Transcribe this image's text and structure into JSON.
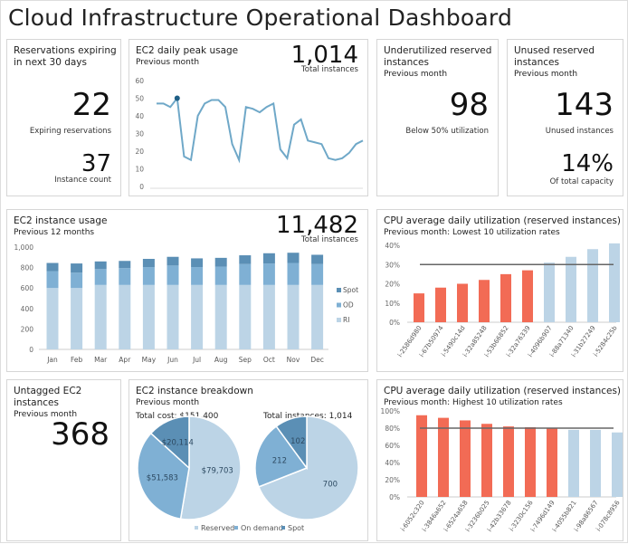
{
  "title": "Cloud Infrastructure Operational Dashboard",
  "expiring": {
    "title": "Reservations expiring in next 30 days",
    "value": "22",
    "value_label": "Expiring reservations",
    "count": "37",
    "count_label": "Instance count"
  },
  "peak": {
    "title": "EC2 daily peak usage",
    "subtitle": "Previous month",
    "total": "1,014",
    "total_label": "Total instances"
  },
  "underutilized": {
    "title": "Underutilized reserved instances",
    "subtitle": "Previous month",
    "value": "98",
    "value_label": "Below 50% utilization"
  },
  "unused": {
    "title": "Unused reserved instances",
    "subtitle": "Previous month",
    "value": "143",
    "value_label": "Unused instances",
    "pct": "14%",
    "pct_label": "Of total capacity"
  },
  "usage": {
    "title": "EC2 instance usage",
    "subtitle": "Previous 12 months",
    "total": "11,482",
    "total_label": "Total instances"
  },
  "cpu_low": {
    "title": "CPU average daily utilization (reserved instances)",
    "subtitle": "Previous month: Lowest 10 utilization rates"
  },
  "untagged": {
    "title": "Untagged EC2 instances",
    "subtitle": "Previous month",
    "value": "368"
  },
  "breakdown": {
    "title": "EC2 instance breakdown",
    "subtitle": "Previous month",
    "cost_label": "Total cost: $151,400",
    "inst_label": "Total instances: 1,014"
  },
  "colors": {
    "line": "#6fa8c8",
    "marker": "#1f5f86",
    "ri": "#bcd4e6",
    "od": "#7fb0d4",
    "spot": "#5b8fb5",
    "red": "#f26b55",
    "blue": "#bcd4e6",
    "threshold": "#666666"
  },
  "chart_data": [
    {
      "type": "line",
      "ylim": [
        0,
        60
      ],
      "yticks": [
        "0",
        "10",
        "20",
        "30",
        "40",
        "50",
        "60"
      ],
      "highlight_index": 3,
      "values": [
        47,
        47,
        45,
        50,
        17,
        15,
        40,
        47,
        49,
        49,
        45,
        24,
        15,
        45,
        44,
        42,
        45,
        47,
        21,
        16,
        35,
        38,
        26,
        25,
        24,
        16,
        15,
        16,
        19,
        24,
        26
      ]
    },
    {
      "type": "bar",
      "stacked": true,
      "ylim": [
        0,
        1000
      ],
      "yticks": [
        "0",
        "200",
        "400",
        "600",
        "800",
        "1,000"
      ],
      "categories": [
        "Jan",
        "Feb",
        "Mar",
        "Apr",
        "May",
        "Jun",
        "Jul",
        "Aug",
        "Sep",
        "Oct",
        "Nov",
        "Dec"
      ],
      "legend": "right",
      "series": [
        {
          "name": "RI",
          "values": [
            600,
            600,
            630,
            630,
            630,
            630,
            630,
            630,
            630,
            630,
            630,
            630
          ]
        },
        {
          "name": "OD",
          "values": [
            165,
            150,
            155,
            165,
            175,
            190,
            175,
            180,
            205,
            210,
            215,
            205
          ]
        },
        {
          "name": "Spot",
          "values": [
            80,
            90,
            75,
            70,
            80,
            85,
            85,
            85,
            85,
            100,
            100,
            90
          ]
        }
      ]
    },
    {
      "type": "bar",
      "ylim": [
        0,
        40
      ],
      "yticks": [
        "0%",
        "10%",
        "20%",
        "30%",
        "40%"
      ],
      "threshold": 30,
      "categories": [
        "i-2586d980",
        "i-67b50974",
        "i-5490c14d",
        "i-32a85248",
        "i-53b66852",
        "i-32a76339",
        "i-4096b907",
        "i-88a71340",
        "i-31b27249",
        "i-5284c25b"
      ],
      "values": [
        15,
        18,
        20,
        22,
        25,
        27,
        31,
        34,
        38,
        41
      ]
    },
    {
      "type": "bar",
      "ylim": [
        0,
        100
      ],
      "yticks": [
        "0%",
        "20%",
        "40%",
        "60%",
        "80%",
        "100%"
      ],
      "threshold": 80,
      "categories": [
        "i-6052c320",
        "i-3846a652",
        "i-6524a658",
        "i-3236b025",
        "i-42b33678",
        "i-3230c156",
        "i-7496d149",
        "i-4055b821",
        "i-98a86567",
        "i-078c8956"
      ],
      "values": [
        95,
        92,
        89,
        85,
        82,
        81,
        80,
        78,
        78,
        75
      ]
    },
    {
      "type": "pie",
      "title": "Total cost: $151,400",
      "labels": [
        "Reserved",
        "On demand",
        "Spot"
      ],
      "values": [
        79703,
        51583,
        20114
      ],
      "value_labels": [
        "$79,703",
        "$51,583",
        "$20,114"
      ]
    },
    {
      "type": "pie",
      "title": "Total instances: 1,014",
      "labels": [
        "Reserved",
        "On demand",
        "Spot"
      ],
      "values": [
        700,
        212,
        102
      ],
      "value_labels": [
        "700",
        "212",
        "102"
      ],
      "legend": "bottom"
    }
  ]
}
